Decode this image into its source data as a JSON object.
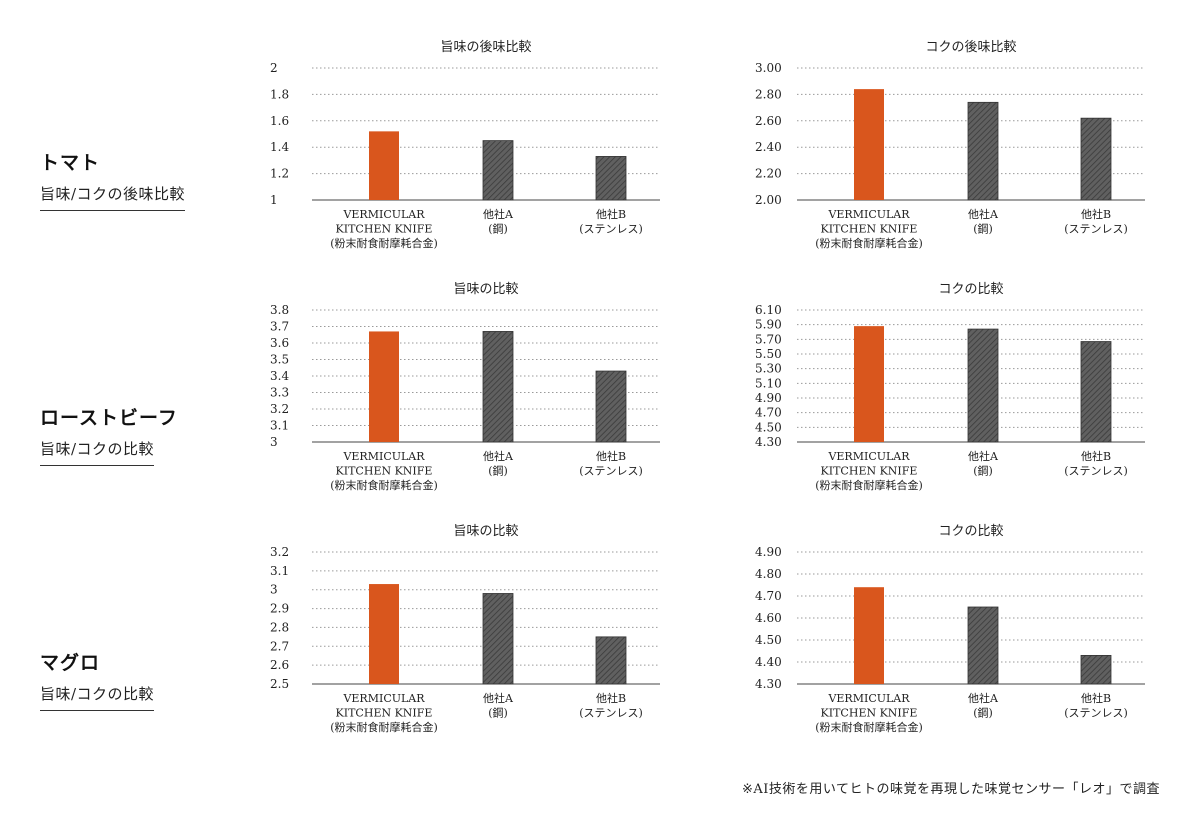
{
  "rows": [
    {
      "title": "トマト",
      "subtitle": "旨味/コクの後味比較"
    },
    {
      "title": "ローストビーフ",
      "subtitle": "旨味/コクの比較"
    },
    {
      "title": "マグロ",
      "subtitle": "旨味/コクの比較"
    }
  ],
  "footnote": "※AI技術を用いてヒトの味覚を再現した味覚センサー「レオ」で調査",
  "colors": {
    "highlight": "#d9561d",
    "other": "#5a5a5a"
  },
  "chart_data": [
    {
      "type": "bar",
      "title": "旨味の後味比較",
      "categories": [
        [
          "VERMICULAR",
          "KITCHEN KNIFE",
          "(粉末耐食耐摩耗合金)"
        ],
        [
          "他社A",
          "(鋼)"
        ],
        [
          "他社B",
          "(ステンレス)"
        ]
      ],
      "values": [
        1.52,
        1.45,
        1.33
      ],
      "ylim": [
        1,
        2
      ],
      "yticks": [
        "1",
        "1.2",
        "1.4",
        "1.6",
        "1.8",
        "2"
      ],
      "grid": true
    },
    {
      "type": "bar",
      "title": "コクの後味比較",
      "categories": [
        [
          "VERMICULAR",
          "KITCHEN KNIFE",
          "(粉末耐食耐摩耗合金)"
        ],
        [
          "他社A",
          "(鋼)"
        ],
        [
          "他社B",
          "(ステンレス)"
        ]
      ],
      "values": [
        2.84,
        2.74,
        2.62
      ],
      "ylim": [
        2.0,
        3.0
      ],
      "yticks": [
        "2.00",
        "2.20",
        "2.40",
        "2.60",
        "2.80",
        "3.00"
      ],
      "grid": true
    },
    {
      "type": "bar",
      "title": "旨味の比較",
      "categories": [
        [
          "VERMICULAR",
          "KITCHEN KNIFE",
          "(粉末耐食耐摩耗合金)"
        ],
        [
          "他社A",
          "(鋼)"
        ],
        [
          "他社B",
          "(ステンレス)"
        ]
      ],
      "values": [
        3.67,
        3.67,
        3.43
      ],
      "ylim": [
        3,
        3.8
      ],
      "yticks": [
        "3",
        "3.1",
        "3.2",
        "3.3",
        "3.4",
        "3.5",
        "3.6",
        "3.7",
        "3.8"
      ],
      "grid": true
    },
    {
      "type": "bar",
      "title": "コクの比較",
      "categories": [
        [
          "VERMICULAR",
          "KITCHEN KNIFE",
          "(粉末耐食耐摩耗合金)"
        ],
        [
          "他社A",
          "(鋼)"
        ],
        [
          "他社B",
          "(ステンレス)"
        ]
      ],
      "values": [
        5.88,
        5.84,
        5.67
      ],
      "ylim": [
        4.3,
        6.1
      ],
      "yticks": [
        "4.30",
        "4.50",
        "4.70",
        "4.90",
        "5.10",
        "5.30",
        "5.50",
        "5.70",
        "5.90",
        "6.10"
      ],
      "grid": true
    },
    {
      "type": "bar",
      "title": "旨味の比較",
      "categories": [
        [
          "VERMICULAR",
          "KITCHEN KNIFE",
          "(粉末耐食耐摩耗合金)"
        ],
        [
          "他社A",
          "(鋼)"
        ],
        [
          "他社B",
          "(ステンレス)"
        ]
      ],
      "values": [
        3.03,
        2.98,
        2.75
      ],
      "ylim": [
        2.5,
        3.2
      ],
      "yticks": [
        "2.5",
        "2.6",
        "2.7",
        "2.8",
        "2.9",
        "3",
        "3.1",
        "3.2"
      ],
      "grid": true
    },
    {
      "type": "bar",
      "title": "コクの比較",
      "categories": [
        [
          "VERMICULAR",
          "KITCHEN KNIFE",
          "(粉末耐食耐摩耗合金)"
        ],
        [
          "他社A",
          "(鋼)"
        ],
        [
          "他社B",
          "(ステンレス)"
        ]
      ],
      "values": [
        4.74,
        4.65,
        4.43
      ],
      "ylim": [
        4.3,
        4.9
      ],
      "yticks": [
        "4.30",
        "4.40",
        "4.50",
        "4.60",
        "4.70",
        "4.80",
        "4.90"
      ],
      "grid": true
    }
  ]
}
